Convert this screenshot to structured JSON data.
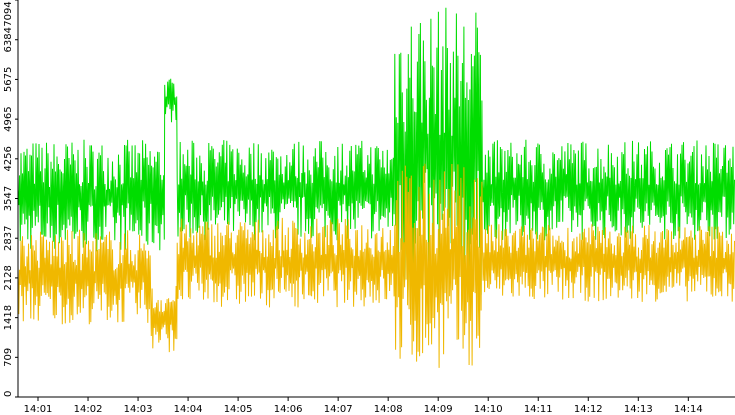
{
  "chart_data": {
    "type": "line",
    "title": "",
    "xlabel": "",
    "ylabel": "",
    "grid": false,
    "legend": "none",
    "ylim": [
      0,
      7094
    ],
    "y_ticks": [
      "0",
      "709",
      "1418",
      "2128",
      "2837",
      "3547",
      "4256",
      "4965",
      "5675",
      "6384",
      "7094"
    ],
    "x_range": [
      "14:00:36",
      "14:14:56"
    ],
    "x_ticks": [
      "14:01",
      "14:02",
      "14:03",
      "14:04",
      "14:05",
      "14:06",
      "14:07",
      "14:08",
      "14:09",
      "14:10",
      "14:11",
      "14:12",
      "14:13",
      "14:14"
    ],
    "series": [
      {
        "color": "#00dd00",
        "segments": [
          {
            "from": "14:00:36",
            "to": "14:03:32",
            "low": 2600,
            "high": 4600
          },
          {
            "from": "14:03:32",
            "to": "14:03:47",
            "low": 4900,
            "high": 5700
          },
          {
            "from": "14:03:47",
            "to": "14:08:08",
            "low": 2800,
            "high": 4600
          },
          {
            "from": "14:08:08",
            "to": "14:09:53",
            "low": 1700,
            "high": 7000
          },
          {
            "from": "14:09:53",
            "to": "14:14:56",
            "low": 2800,
            "high": 4600
          }
        ]
      },
      {
        "color": "#f0b800",
        "segments": [
          {
            "from": "14:00:36",
            "to": "14:03:15",
            "low": 1300,
            "high": 3000
          },
          {
            "from": "14:03:15",
            "to": "14:03:47",
            "low": 800,
            "high": 2000
          },
          {
            "from": "14:03:47",
            "to": "14:08:08",
            "low": 1600,
            "high": 3200
          },
          {
            "from": "14:08:08",
            "to": "14:09:53",
            "low": 500,
            "high": 4200
          },
          {
            "from": "14:09:53",
            "to": "14:14:56",
            "low": 1700,
            "high": 3100
          }
        ]
      }
    ]
  }
}
